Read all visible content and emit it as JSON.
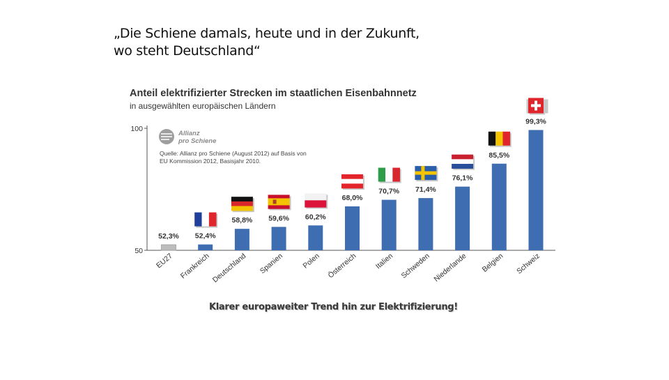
{
  "slide": {
    "title_line1": "„Die Schiene damals, heute und in der Zukunft,",
    "title_line2": "wo steht Deutschland“",
    "caption": "Klarer europaweiter Trend hin zur Elektrifizierung!"
  },
  "chart_data": {
    "type": "bar",
    "title": "Anteil elektrifizierter Strecken im staatlichen Eisenbahnnetz",
    "subtitle": "in ausgewählten europäischen Ländern",
    "xlabel": "",
    "ylabel": "",
    "ylim": [
      50,
      100
    ],
    "yticks": [
      "50",
      "100"
    ],
    "grid": false,
    "source_logo_line1": "Allianz",
    "source_logo_line2": "pro Schiene",
    "source_line1": "Quelle: Allianz pro Schiene (August 2012) auf Basis von",
    "source_line2": "EU Kommission 2012, Basisjahr 2010.",
    "categories": [
      "EU27",
      "Frankreich",
      "Deutschland",
      "Spanien",
      "Polen",
      "Österreich",
      "Italien",
      "Schweden",
      "Niederlande",
      "Belgien",
      "Schweiz"
    ],
    "values": [
      52.3,
      52.4,
      58.8,
      59.6,
      60.2,
      68.0,
      70.7,
      71.4,
      76.1,
      85.5,
      99.3
    ],
    "value_labels": [
      "52,3%",
      "52,4%",
      "58,8%",
      "59,6%",
      "60,2%",
      "68,0%",
      "70,7%",
      "71,4%",
      "76,1%",
      "85,5%",
      "99,3%"
    ],
    "flags": [
      "none",
      "france-flag",
      "germany-flag",
      "spain-flag",
      "poland-flag",
      "austria-flag",
      "italy-flag",
      "sweden-flag",
      "netherlands-flag",
      "belgium-flag",
      "switzerland-flag"
    ],
    "colors": {
      "bar": "#3f6db1",
      "bar_highlight": "#bdbdbd",
      "axis": "#555555",
      "text": "#333333"
    }
  }
}
